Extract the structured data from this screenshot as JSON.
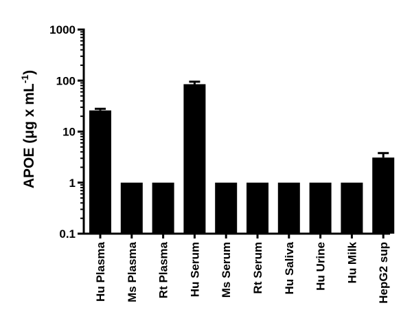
{
  "chart_data": {
    "type": "bar",
    "title": "",
    "xlabel": "",
    "ylabel": "APOE (μg x mL",
    "ylabel_superscript": "-1",
    "ylabel_close": ")",
    "yscale": "log",
    "ylim": [
      0.1,
      1000
    ],
    "yticks": [
      0.1,
      1,
      10,
      100,
      1000
    ],
    "ytick_labels": [
      "0.1",
      "1",
      "10",
      "100",
      "1000"
    ],
    "grid": false,
    "legend": "none",
    "bar_color": "#000000",
    "categories": [
      "Hu Plasma",
      "Ms Plasma",
      "Rt Plasma",
      "Hu Serum",
      "Ms Serum",
      "Rt Serum",
      "Hu Saliva",
      "Hu Urine",
      "Hu Milk",
      "HepG2 sup"
    ],
    "values": [
      26,
      1,
      1,
      85,
      1,
      1,
      1,
      1,
      1,
      3.1
    ],
    "error_upper": [
      28,
      1,
      1,
      95,
      1,
      1,
      1,
      1,
      1,
      3.8
    ]
  }
}
